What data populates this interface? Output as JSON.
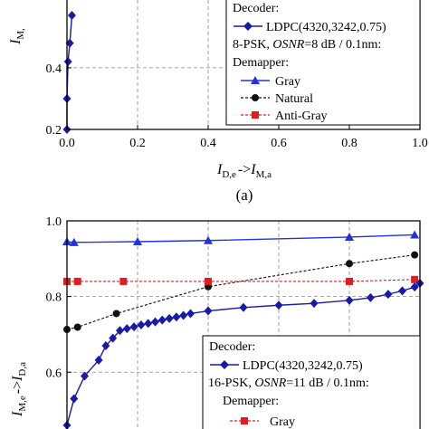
{
  "figure": {
    "subfigure_top_label": "(a)"
  },
  "chart_data": [
    {
      "type": "line",
      "panel": "top",
      "xlabel": {
        "main": "I",
        "sub1": "D,e",
        "arrow": "->",
        "main2": "I",
        "sub2": "M,a"
      },
      "ylabel": {
        "main": "I",
        "sub": "M,"
      },
      "xlim": [
        0.0,
        1.0
      ],
      "ylim": [
        0.2,
        0.62
      ],
      "xticks": [
        "0.0",
        "0.2",
        "0.4",
        "0.6",
        "0.8",
        "1.0"
      ],
      "yticks": [
        "0.2",
        "0.4"
      ],
      "ytick_values": [
        0.2,
        0.4
      ],
      "grid": "dashed",
      "legend": {
        "placement": "right",
        "decoder_title": "Decoder:",
        "decoder_entry": "LDPC(4320,3242,0.75)",
        "condition_prefix": "8-PSK, ",
        "condition_osnr": "OSNR",
        "condition_suffix": "=8 dB / 0.1nm:",
        "demapper_title": "Demapper:",
        "entries": [
          "Gray",
          "Natural",
          "Anti-Gray"
        ]
      },
      "series": [
        {
          "name": "LDPC(4320,3242,0.75)",
          "color": "#1a1aa8",
          "marker": "diamond",
          "x": [
            0.0,
            0.0,
            0.003,
            0.008,
            0.014
          ],
          "y": [
            0.2,
            0.3,
            0.42,
            0.48,
            0.57
          ]
        }
      ]
    },
    {
      "type": "line",
      "panel": "bottom",
      "xlabel": "",
      "ylabel": {
        "main": "I",
        "sub1": "M,e",
        "arrow": "->",
        "main2": "I",
        "sub2": "D,a"
      },
      "xlim": [
        0.0,
        1.0
      ],
      "ylim": [
        0.45,
        1.0
      ],
      "yticks": [
        "0.6",
        "0.8",
        "1.0"
      ],
      "ytick_values": [
        0.6,
        0.8,
        1.0
      ],
      "grid": "dashed",
      "legend": {
        "placement": "bottom-right",
        "decoder_title": "Decoder:",
        "decoder_entry": "LDPC(4320,3242,0.75)",
        "condition_prefix": "16-PSK, ",
        "condition_osnr": "OSNR",
        "condition_suffix": "=11 dB / 0.1nm:",
        "demapper_title": "Demapper:",
        "entries": [
          "Gray"
        ]
      },
      "series": [
        {
          "name": "Gray",
          "color": "#2233dd",
          "marker": "triangle",
          "x": [
            0.0,
            0.02,
            0.2,
            0.4,
            0.8,
            0.985
          ],
          "y": [
            0.945,
            0.943,
            0.945,
            0.948,
            0.957,
            0.963
          ]
        },
        {
          "name": "Natural",
          "color": "#111111",
          "marker": "circle",
          "x": [
            0.0,
            0.03,
            0.14,
            0.4,
            0.8,
            0.985
          ],
          "y": [
            0.713,
            0.719,
            0.755,
            0.826,
            0.887,
            0.91
          ]
        },
        {
          "name": "Anti-Gray",
          "color": "#dd1f1f",
          "marker": "square",
          "x": [
            0.0,
            0.03,
            0.16,
            0.4,
            0.8,
            0.985
          ],
          "y": [
            0.84,
            0.84,
            0.84,
            0.84,
            0.84,
            0.845
          ]
        },
        {
          "name": "LDPC(4320,3242,0.75)",
          "color": "#1a1aa8",
          "marker": "diamond",
          "x": [
            0.0,
            0.02,
            0.05,
            0.09,
            0.11,
            0.13,
            0.15,
            0.17,
            0.19,
            0.21,
            0.23,
            0.25,
            0.27,
            0.29,
            0.31,
            0.33,
            0.35,
            0.4,
            0.5,
            0.6,
            0.7,
            0.8,
            0.86,
            0.91,
            0.95,
            0.985,
            1.0
          ],
          "y": [
            0.46,
            0.53,
            0.59,
            0.632,
            0.67,
            0.69,
            0.71,
            0.715,
            0.72,
            0.725,
            0.729,
            0.733,
            0.738,
            0.742,
            0.746,
            0.75,
            0.755,
            0.762,
            0.771,
            0.777,
            0.782,
            0.79,
            0.797,
            0.806,
            0.815,
            0.825,
            0.835
          ]
        }
      ]
    }
  ]
}
